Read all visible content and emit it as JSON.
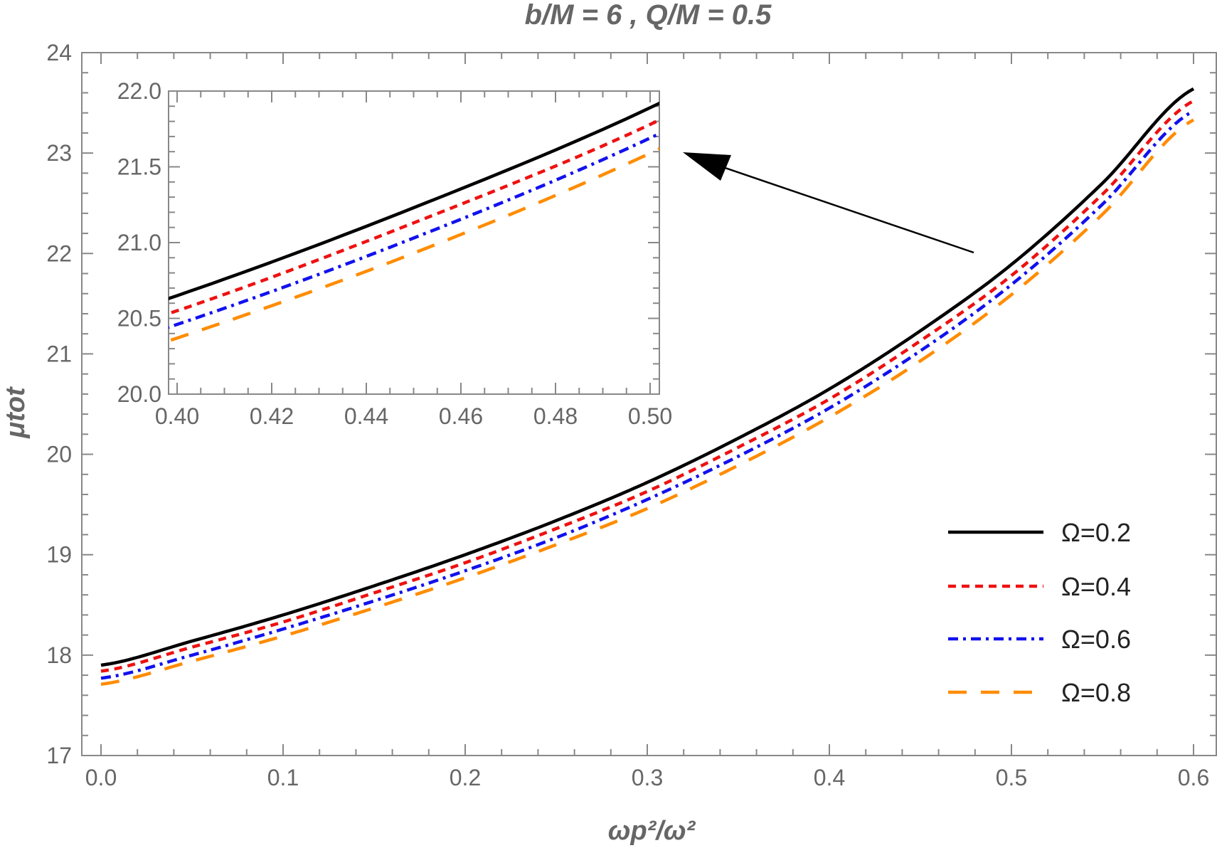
{
  "chart_data": {
    "type": "line",
    "title": "b/M = 6 , Q/M = 0.5",
    "xlabel": "ωp²/ω²",
    "xlabel_parts": {
      "base": "ω",
      "sub": "p",
      "sup": "2",
      "rest": "/ω",
      "sup2": "2"
    },
    "ylabel": "μtot",
    "ylabel_parts": {
      "base": "μ",
      "sub": "tot"
    },
    "xlim": [
      0,
      0.6
    ],
    "ylim": [
      17,
      24
    ],
    "x_ticks": [
      "0.0",
      "0.1",
      "0.2",
      "0.3",
      "0.4",
      "0.5",
      "0.6"
    ],
    "y_ticks": [
      "17",
      "18",
      "19",
      "20",
      "21",
      "22",
      "23",
      "24"
    ],
    "grid": false,
    "legend_position": "right",
    "x": [
      0,
      0.05,
      0.1,
      0.15,
      0.2,
      0.25,
      0.3,
      0.35,
      0.4,
      0.45,
      0.5,
      0.55,
      0.6
    ],
    "series": [
      {
        "name": "Ω=0.2",
        "color": "#000000",
        "style": "solid",
        "values": [
          17.9,
          18.14,
          18.4,
          18.69,
          19.0,
          19.34,
          19.72,
          20.16,
          20.65,
          21.23,
          21.89,
          22.7,
          23.64
        ]
      },
      {
        "name": "Ω=0.4",
        "color": "#ee1111",
        "style": "dashed",
        "values": [
          17.84,
          18.08,
          18.33,
          18.62,
          18.92,
          19.26,
          19.63,
          20.07,
          20.55,
          21.13,
          21.78,
          22.59,
          23.52
        ]
      },
      {
        "name": "Ω=0.6",
        "color": "#1111ee",
        "style": "dot-dashed",
        "values": [
          17.77,
          18.0,
          18.26,
          18.54,
          18.84,
          19.17,
          19.55,
          19.98,
          20.46,
          21.03,
          21.69,
          22.49,
          23.42
        ]
      },
      {
        "name": "Ω=0.8",
        "color": "#ff8c00",
        "style": "long-dashed",
        "values": [
          17.71,
          17.94,
          18.19,
          18.47,
          18.77,
          19.1,
          19.46,
          19.89,
          20.37,
          20.93,
          21.59,
          22.39,
          23.33
        ]
      }
    ],
    "inset": {
      "xlim": [
        0.4,
        0.5
      ],
      "ylim": [
        20.0,
        22.0
      ],
      "x_ticks": [
        "0.40",
        "0.42",
        "0.44",
        "0.46",
        "0.48",
        "0.50"
      ],
      "y_ticks": [
        "20.0",
        "20.5",
        "21.0",
        "21.5",
        "22.0"
      ]
    },
    "annotation": "arrow pointing from main curves to inset"
  }
}
